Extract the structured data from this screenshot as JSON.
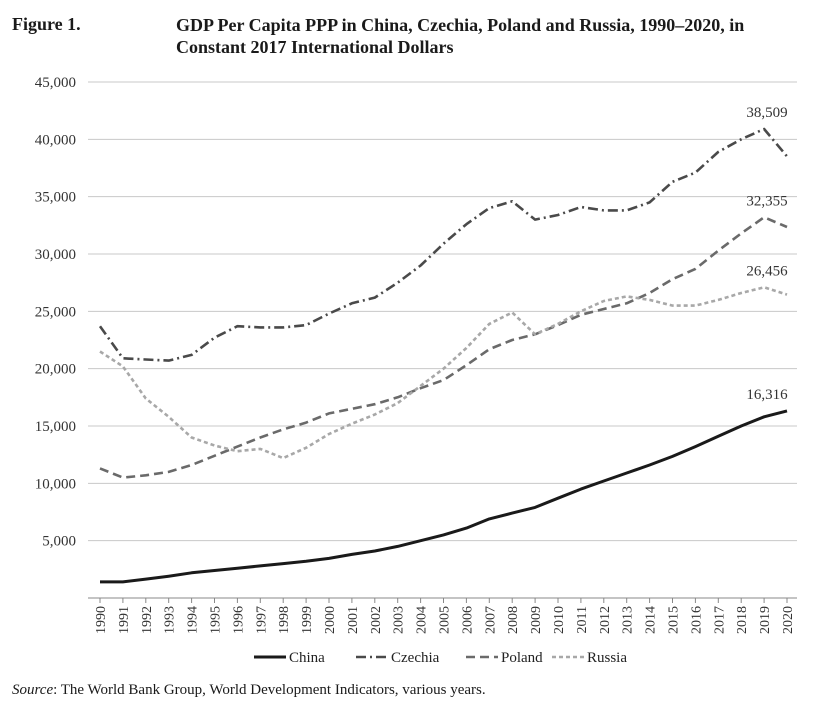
{
  "figure_label": "Figure 1.",
  "title": "GDP Per Capita PPP in China, Czechia, Poland and Russia, 1990–2020, in Constant 2017 International Dollars",
  "source_label": "Source",
  "source_text": ": The World Bank Group, World Development Indicators, various years.",
  "chart_data": {
    "type": "line",
    "title": "GDP Per Capita PPP in China, Czechia, Poland and Russia, 1990–2020, in Constant 2017 International Dollars",
    "xlabel": "",
    "ylabel": "",
    "ylim": [
      0,
      45000
    ],
    "y_ticks": [
      5000,
      10000,
      15000,
      20000,
      25000,
      30000,
      35000,
      40000,
      45000
    ],
    "y_tick_labels": [
      "5,000",
      "10,000",
      "15,000",
      "20,000",
      "25,000",
      "30,000",
      "35,000",
      "40,000",
      "45,000"
    ],
    "grid": true,
    "legend_position": "bottom",
    "categories": [
      "1990",
      "1991",
      "1992",
      "1993",
      "1994",
      "1995",
      "1996",
      "1997",
      "1998",
      "1999",
      "2000",
      "2001",
      "2002",
      "2003",
      "2004",
      "2005",
      "2006",
      "2007",
      "2008",
      "2009",
      "2010",
      "2011",
      "2012",
      "2013",
      "2014",
      "2015",
      "2016",
      "2017",
      "2018",
      "2019",
      "2020"
    ],
    "series": [
      {
        "name": "China",
        "color": "#1a1a1a",
        "dash": "solid",
        "values": [
          1400,
          1400,
          1650,
          1900,
          2200,
          2400,
          2600,
          2800,
          3000,
          3200,
          3450,
          3800,
          4100,
          4500,
          5000,
          5500,
          6100,
          6900,
          7400,
          7900,
          8700,
          9500,
          10200,
          10900,
          11600,
          12350,
          13200,
          14100,
          15000,
          15800,
          16316
        ],
        "end_label": "16,316"
      },
      {
        "name": "Czechia",
        "color": "#4a4a4a",
        "dash": "dashdot",
        "values": [
          23700,
          20900,
          20800,
          20700,
          21200,
          22700,
          23700,
          23600,
          23600,
          23800,
          24800,
          25700,
          26200,
          27500,
          29000,
          30900,
          32600,
          34000,
          34600,
          33000,
          33400,
          34100,
          33800,
          33800,
          34500,
          36300,
          37100,
          38900,
          40000,
          40900,
          38509
        ],
        "end_label": "38,509"
      },
      {
        "name": "Poland",
        "color": "#6a6a6a",
        "dash": "dashed",
        "values": [
          11300,
          10500,
          10700,
          11000,
          11600,
          12400,
          13200,
          14000,
          14700,
          15300,
          16100,
          16500,
          16900,
          17500,
          18300,
          19000,
          20300,
          21700,
          22500,
          23000,
          23800,
          24700,
          25200,
          25700,
          26600,
          27800,
          28700,
          30300,
          31800,
          33200,
          32355
        ],
        "end_label": "32,355"
      },
      {
        "name": "Russia",
        "color": "#a8a8a8",
        "dash": "dotted",
        "values": [
          21500,
          20200,
          17400,
          15800,
          14000,
          13300,
          12800,
          13000,
          12200,
          13100,
          14300,
          15200,
          16000,
          17000,
          18500,
          20000,
          21800,
          23900,
          24900,
          23000,
          23900,
          25000,
          25900,
          26300,
          26000,
          25500,
          25500,
          26000,
          26600,
          27100,
          26456
        ],
        "end_label": "26,456"
      }
    ]
  }
}
